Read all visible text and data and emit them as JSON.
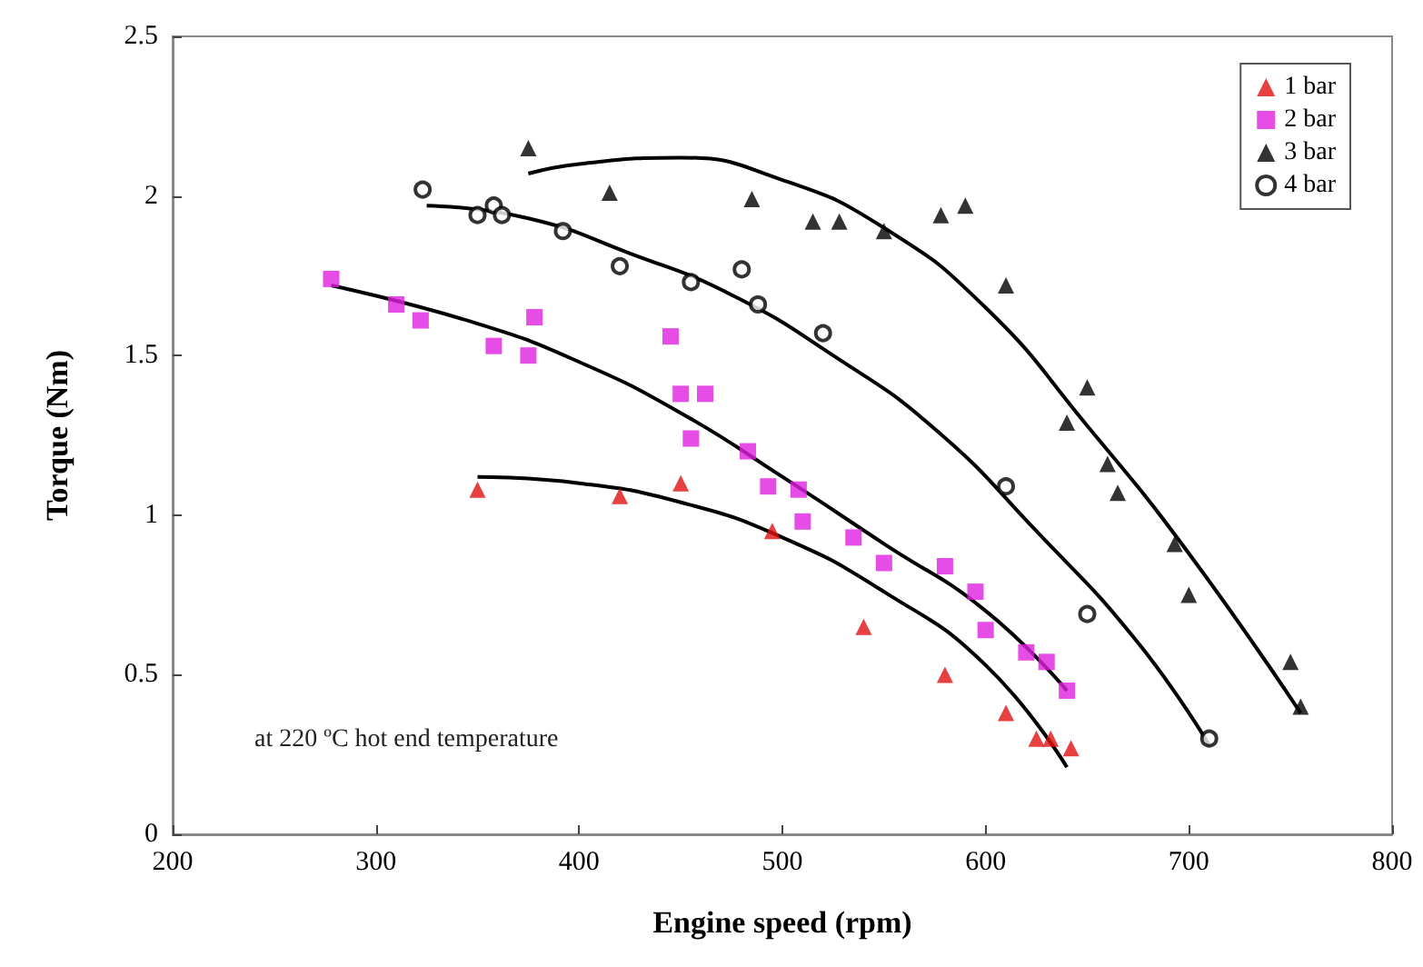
{
  "chart_data": {
    "type": "scatter",
    "xlabel": "Engine speed (rpm)",
    "ylabel": "Torque (Nm)",
    "xlim": [
      200,
      800
    ],
    "xticks": [
      200,
      300,
      400,
      500,
      600,
      700,
      800
    ],
    "ylim": [
      0,
      2.5
    ],
    "yticks": [
      0,
      0.5,
      1,
      1.5,
      2,
      2.5
    ],
    "grid": false,
    "legend": "top right",
    "annotations": [
      "at 220 ºC hot end temperature"
    ],
    "series": [
      {
        "name": "1 bar",
        "color": "#e01010",
        "marker": "triangle",
        "x": [
          350,
          420,
          450,
          495,
          540,
          580,
          610,
          625,
          632,
          642
        ],
        "values": [
          1.08,
          1.06,
          1.1,
          0.95,
          0.65,
          0.5,
          0.38,
          0.3,
          0.3,
          0.27
        ]
      },
      {
        "name": "2 bar",
        "color": "#e020e0",
        "marker": "square",
        "x": [
          278,
          310,
          322,
          358,
          375,
          378,
          445,
          450,
          455,
          462,
          483,
          493,
          508,
          510,
          535,
          550,
          580,
          595,
          600,
          620,
          630,
          640
        ],
        "values": [
          1.74,
          1.66,
          1.61,
          1.53,
          1.5,
          1.62,
          1.56,
          1.38,
          1.24,
          1.38,
          1.2,
          1.09,
          1.08,
          0.98,
          0.93,
          0.85,
          0.84,
          0.76,
          0.64,
          0.57,
          0.54,
          0.45
        ]
      },
      {
        "name": "3 bar",
        "color": "#000000",
        "marker": "triangle",
        "x": [
          375,
          415,
          485,
          515,
          528,
          550,
          578,
          590,
          610,
          640,
          650,
          660,
          665,
          693,
          700,
          750,
          755
        ],
        "values": [
          2.15,
          2.01,
          1.99,
          1.92,
          1.92,
          1.89,
          1.94,
          1.97,
          1.72,
          1.29,
          1.4,
          1.16,
          1.07,
          0.91,
          0.75,
          0.54,
          0.4
        ]
      },
      {
        "name": "4 bar",
        "color": "#000000",
        "marker": "circle",
        "x": [
          323,
          350,
          358,
          362,
          392,
          420,
          455,
          480,
          488,
          520,
          610,
          650,
          710
        ],
        "values": [
          2.02,
          1.94,
          1.97,
          1.94,
          1.89,
          1.78,
          1.73,
          1.77,
          1.66,
          1.57,
          1.09,
          0.69,
          0.3
        ]
      },
      {
        "type": "line",
        "color": "#000000",
        "marker": "none",
        "x": [
          350,
          400,
          450,
          500,
          550,
          600,
          640
        ],
        "values": [
          1.12,
          1.1,
          1.04,
          0.93,
          0.76,
          0.53,
          0.21
        ]
      },
      {
        "type": "line",
        "color": "#000000",
        "marker": "none",
        "x": [
          278,
          350,
          400,
          450,
          500,
          550,
          600,
          640
        ],
        "values": [
          1.72,
          1.6,
          1.48,
          1.32,
          1.12,
          0.91,
          0.7,
          0.45
        ]
      },
      {
        "type": "line",
        "color": "#000000",
        "marker": "none",
        "x": [
          375,
          400,
          450,
          500,
          550,
          600,
          650,
          700,
          755
        ],
        "values": [
          2.07,
          2.1,
          2.12,
          2.05,
          1.9,
          1.65,
          1.28,
          0.88,
          0.38
        ]
      },
      {
        "type": "line",
        "color": "#000000",
        "marker": "none",
        "x": [
          325,
          375,
          425,
          475,
          525,
          575,
          625,
          675,
          710
        ],
        "values": [
          1.97,
          1.93,
          1.82,
          1.69,
          1.5,
          1.27,
          0.95,
          0.6,
          0.28
        ]
      }
    ]
  }
}
